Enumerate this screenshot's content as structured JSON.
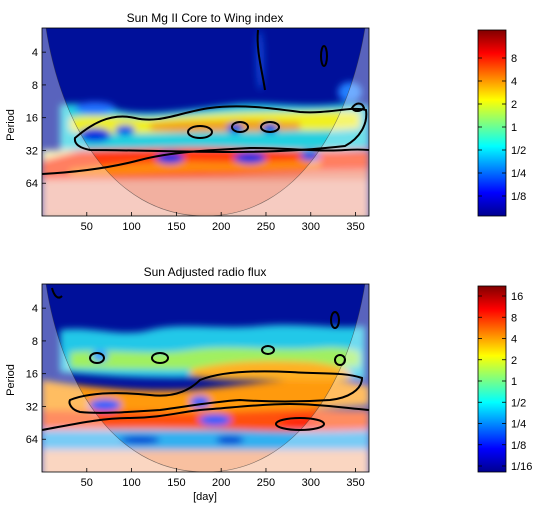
{
  "chart_data": [
    {
      "type": "heatmap",
      "title": "Sun Mg II Core to Wing index",
      "xlabel": "",
      "ylabel": "Period",
      "xlim": [
        0,
        365
      ],
      "x_ticks": [
        50,
        100,
        150,
        200,
        250,
        300,
        350
      ],
      "y_scale": "log2",
      "y_ticks": [
        "4",
        "8",
        "16",
        "32",
        "64"
      ],
      "colorbar_ticks": [
        "8",
        "4",
        "2",
        "1",
        "1/2",
        "1/4",
        "1/8"
      ],
      "colorbar_range": [
        -4,
        4
      ]
    },
    {
      "type": "heatmap",
      "title": "Sun Adjusted radio flux",
      "xlabel": "[day]",
      "ylabel": "Period",
      "xlim": [
        0,
        365
      ],
      "x_ticks": [
        50,
        100,
        150,
        200,
        250,
        300,
        350
      ],
      "y_scale": "log2",
      "y_ticks": [
        "4",
        "8",
        "16",
        "32",
        "64"
      ],
      "colorbar_ticks": [
        "16",
        "8",
        "4",
        "2",
        "1",
        "1/2",
        "1/4",
        "1/8",
        "1/16"
      ],
      "colorbar_range": [
        -4,
        4
      ]
    }
  ]
}
